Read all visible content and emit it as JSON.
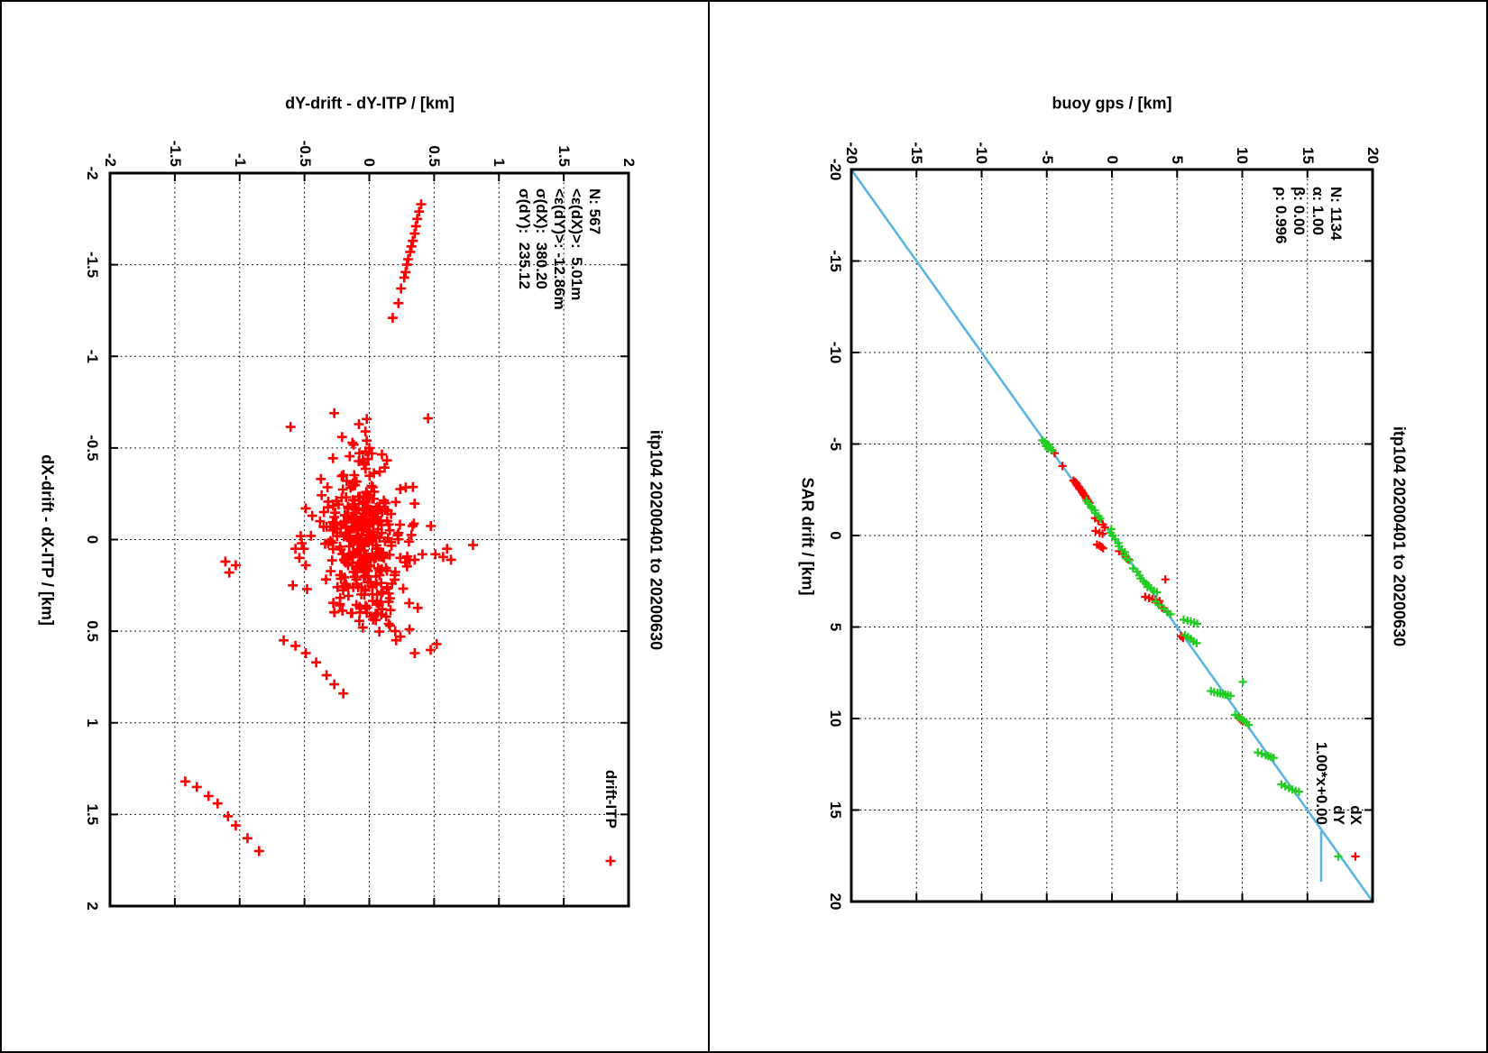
{
  "page": {
    "background": "#ffffff",
    "frame_color": "#000000",
    "grid_color": "#000000"
  },
  "chart_data": [
    {
      "id": "left",
      "type": "scatter",
      "title": "itp104 20200401 to 20200630",
      "xlabel": "dX-drift - dX-ITP / [km]",
      "ylabel": "dY-drift - dY-ITP / [km]",
      "xlim": [
        -2,
        2
      ],
      "ylim": [
        -2,
        2
      ],
      "xtick_values": [
        -2,
        -1.5,
        -1,
        -0.5,
        0,
        0.5,
        1,
        1.5,
        2
      ],
      "xtick_labels": [
        "-2",
        "-1.5",
        "-1",
        "-0.5",
        "0",
        "0.5",
        "1",
        "1.5",
        "2"
      ],
      "ytick_values": [
        -2,
        -1.5,
        -1,
        -0.5,
        0,
        0.5,
        1,
        1.5,
        2
      ],
      "ytick_labels": [
        "-2",
        "-1.5",
        "-1",
        "-0.5",
        "0",
        "0.5",
        "1",
        "1.5",
        "2"
      ],
      "grid": true,
      "stats_lines": [
        "N: 567",
        "<ε(dX)>:  5.01m",
        "<ε(dY)>: -12.86m",
        "σ(dX):  380.20",
        "σ(dY):  235.12"
      ],
      "legend": [
        {
          "label": "drift-ITP",
          "sample": "plus",
          "color": "#ff0000"
        }
      ],
      "series": [
        {
          "name": "drift-ITP",
          "marker": "plus",
          "color": "#ff0000",
          "points": [
            [
              -1.83,
              0.4
            ],
            [
              -1.79,
              0.385
            ],
            [
              -1.75,
              0.37
            ],
            [
              -1.71,
              0.36
            ],
            [
              -1.67,
              0.35
            ],
            [
              -1.63,
              0.335
            ],
            [
              -1.6,
              0.325
            ],
            [
              -1.57,
              0.315
            ],
            [
              -1.53,
              0.3
            ],
            [
              -1.5,
              0.29
            ],
            [
              -1.46,
              0.28
            ],
            [
              -1.43,
              0.27
            ],
            [
              -1.37,
              0.245
            ],
            [
              -1.29,
              0.225
            ],
            [
              -1.21,
              0.18
            ],
            [
              0.25,
              -0.59
            ],
            [
              0.27,
              -0.48
            ],
            [
              0.55,
              -0.66
            ],
            [
              0.58,
              -0.57
            ],
            [
              0.62,
              -0.49
            ],
            [
              0.67,
              -0.41
            ],
            [
              0.74,
              -0.33
            ],
            [
              0.79,
              -0.27
            ],
            [
              0.84,
              -0.2
            ],
            [
              1.32,
              -1.42
            ],
            [
              1.35,
              -1.33
            ],
            [
              1.4,
              -1.24
            ],
            [
              1.44,
              -1.17
            ],
            [
              1.51,
              -1.09
            ],
            [
              1.56,
              -1.03
            ],
            [
              1.63,
              -0.94
            ],
            [
              1.7,
              -0.85
            ],
            [
              0.03,
              0.8
            ],
            [
              0.05,
              0.6
            ],
            [
              0.11,
              0.63
            ],
            [
              0.095,
              0.57
            ],
            [
              0.08,
              0.51
            ],
            [
              0.11,
              0.35
            ],
            [
              0.08,
              0.41
            ],
            [
              0.57,
              0.52
            ],
            [
              0.62,
              0.35
            ],
            [
              0.12,
              -1.11
            ],
            [
              0.14,
              -1.03
            ],
            [
              0.18,
              -1.08
            ],
            [
              -0.69,
              -0.27
            ],
            [
              -0.56,
              -0.21
            ],
            [
              0.1,
              -0.54
            ],
            [
              0.14,
              -0.49
            ],
            [
              0.3,
              0.06
            ],
            [
              0.34,
              0.09
            ],
            [
              0.38,
              0.1
            ],
            [
              0.42,
              0.13
            ],
            [
              0.46,
              0.15
            ],
            [
              0.5,
              0.2
            ],
            [
              0.53,
              0.24
            ],
            [
              0.44,
              0.05
            ],
            [
              0.4,
              -0.02
            ],
            [
              0.48,
              -0.05
            ],
            [
              0.47,
              0.16
            ],
            [
              0.49,
              0.31
            ],
            [
              -0.59,
              -0.03
            ],
            [
              -0.54,
              -0.02
            ],
            [
              -0.5,
              0.0
            ],
            [
              -0.47,
              0.02
            ],
            [
              -0.44,
              -0.01
            ],
            [
              -0.41,
              -0.04
            ],
            [
              -0.63,
              -0.08
            ],
            [
              -0.17,
              -0.49
            ],
            [
              -0.13,
              -0.44
            ],
            [
              -0.1,
              -0.38
            ],
            [
              -0.07,
              -0.33
            ],
            [
              -0.05,
              -0.28
            ],
            [
              -0.15,
              -0.35
            ],
            [
              -0.02,
              -0.45
            ],
            [
              0.02,
              -0.52
            ],
            [
              0.05,
              -0.57
            ]
          ],
          "cluster_approx": {
            "note": "dense core of the 567-sample residual cloud",
            "seed": 20200401,
            "count": 300,
            "center": [
              0.01,
              -0.04
            ],
            "sigma": [
              0.19,
              0.14
            ],
            "halo_count": 60,
            "halo_sigma": [
              0.33,
              0.24
            ],
            "clip_x": [
              -0.75,
              0.75
            ],
            "clip_y": [
              -0.65,
              0.5
            ]
          }
        }
      ]
    },
    {
      "id": "right",
      "type": "scatter",
      "title": "itp104 20200401 to 20200630",
      "xlabel": "SAR drift / [km]",
      "ylabel": "buoy gps / [km]",
      "xlim": [
        -20,
        20
      ],
      "ylim": [
        -20,
        20
      ],
      "xtick_values": [
        -20,
        -15,
        -10,
        -5,
        0,
        5,
        10,
        15,
        20
      ],
      "xtick_labels": [
        "-20",
        "-15",
        "-10",
        "-5",
        "0",
        "5",
        "10",
        "15",
        "20"
      ],
      "ytick_values": [
        -20,
        -15,
        -10,
        -5,
        0,
        5,
        10,
        15,
        20
      ],
      "ytick_labels": [
        "-20",
        "-15",
        "-10",
        "-5",
        "0",
        "5",
        "10",
        "15",
        "20"
      ],
      "grid": true,
      "stats_lines": [
        "N: 1134",
        "α: 1.00",
        "β: 0.00",
        "ρ: 0.996"
      ],
      "legend": [
        {
          "label": "dX",
          "sample": "plus",
          "color": "#ff0000"
        },
        {
          "label": "dY",
          "sample": "plus",
          "color": "#22cc22"
        },
        {
          "label": "1.00*x+0.00",
          "sample": "line",
          "color": "#5ab4e4"
        }
      ],
      "fit_line": {
        "label": "1.00*x+0.00",
        "slope": 1.0,
        "intercept": 0.0,
        "color": "#5ab4e4"
      },
      "series": [
        {
          "name": "dX",
          "marker": "plus",
          "color": "#ff0000",
          "points": [
            [
              -4.5,
              -4.4
            ],
            [
              -3.8,
              -3.8
            ],
            [
              -3.0,
              -2.95
            ],
            [
              -2.92,
              -2.8
            ],
            [
              -2.85,
              -2.75
            ],
            [
              -2.78,
              -2.7
            ],
            [
              -2.7,
              -2.62
            ],
            [
              -2.64,
              -2.52
            ],
            [
              -2.56,
              -2.5
            ],
            [
              -2.5,
              -2.4
            ],
            [
              -2.44,
              -2.32
            ],
            [
              -2.36,
              -2.28
            ],
            [
              -2.3,
              -2.2
            ],
            [
              -2.22,
              -2.15
            ],
            [
              -2.15,
              -2.05
            ],
            [
              -2.05,
              -2.0
            ],
            [
              -1.95,
              -1.88
            ],
            [
              -1.85,
              -1.82
            ],
            [
              -1.78,
              -1.72
            ],
            [
              -0.95,
              -1.3
            ],
            [
              -0.82,
              -1.05
            ],
            [
              -0.6,
              -0.7
            ],
            [
              -0.45,
              -0.55
            ],
            [
              -0.25,
              -1.25
            ],
            [
              -0.15,
              -0.95
            ],
            [
              -0.1,
              -0.72
            ],
            [
              0.5,
              -1.15
            ],
            [
              0.55,
              -0.95
            ],
            [
              0.62,
              -0.8
            ],
            [
              0.7,
              -0.68
            ],
            [
              0.85,
              0.55
            ],
            [
              1.0,
              0.85
            ],
            [
              1.15,
              1.05
            ],
            [
              1.3,
              1.25
            ],
            [
              2.4,
              4.1
            ],
            [
              3.35,
              2.55
            ],
            [
              3.42,
              2.85
            ],
            [
              3.48,
              3.1
            ],
            [
              3.52,
              3.35
            ],
            [
              3.58,
              3.65
            ],
            [
              3.7,
              3.55
            ],
            [
              3.95,
              3.85
            ],
            [
              4.15,
              4.25
            ],
            [
              5.5,
              5.3
            ],
            [
              5.6,
              5.45
            ],
            [
              10.0,
              9.8
            ],
            [
              10.08,
              9.92
            ],
            [
              10.15,
              10.05
            ]
          ]
        },
        {
          "name": "dY",
          "marker": "plus",
          "color": "#22cc22",
          "points": [
            [
              -5.2,
              -5.35
            ],
            [
              -5.1,
              -5.15
            ],
            [
              -5.0,
              -5.0
            ],
            [
              -4.95,
              -4.85
            ],
            [
              -4.88,
              -5.05
            ],
            [
              -4.82,
              -4.75
            ],
            [
              -4.75,
              -4.9
            ],
            [
              -4.65,
              -4.55
            ],
            [
              -1.9,
              -1.95
            ],
            [
              -1.75,
              -1.8
            ],
            [
              -1.6,
              -1.62
            ],
            [
              -1.5,
              -1.55
            ],
            [
              -1.38,
              -1.32
            ],
            [
              -1.22,
              -1.28
            ],
            [
              -1.05,
              -1.02
            ],
            [
              -0.92,
              -0.9
            ],
            [
              -0.35,
              -0.05
            ],
            [
              -0.15,
              -0.1
            ],
            [
              0.0,
              0.05
            ],
            [
              0.2,
              0.25
            ],
            [
              0.42,
              0.5
            ],
            [
              0.58,
              0.55
            ],
            [
              0.78,
              0.75
            ],
            [
              0.9,
              1.0
            ],
            [
              1.08,
              1.02
            ],
            [
              1.25,
              1.1
            ],
            [
              1.35,
              1.35
            ],
            [
              1.8,
              1.62
            ],
            [
              1.98,
              1.95
            ],
            [
              2.18,
              2.12
            ],
            [
              2.35,
              2.2
            ],
            [
              2.5,
              2.42
            ],
            [
              2.62,
              2.6
            ],
            [
              2.72,
              2.78
            ],
            [
              2.82,
              2.72
            ],
            [
              2.9,
              3.0
            ],
            [
              3.02,
              3.2
            ],
            [
              3.1,
              3.45
            ],
            [
              3.6,
              3.35
            ],
            [
              3.8,
              3.62
            ],
            [
              4.0,
              4.0
            ],
            [
              4.18,
              4.22
            ],
            [
              4.3,
              4.5
            ],
            [
              4.6,
              5.5
            ],
            [
              4.66,
              5.8
            ],
            [
              4.7,
              6.05
            ],
            [
              4.76,
              6.3
            ],
            [
              4.82,
              6.55
            ],
            [
              5.45,
              5.6
            ],
            [
              5.55,
              5.85
            ],
            [
              5.65,
              6.05
            ],
            [
              5.78,
              6.25
            ],
            [
              5.88,
              6.5
            ],
            [
              8.0,
              10.05
            ],
            [
              8.5,
              7.6
            ],
            [
              8.55,
              7.85
            ],
            [
              8.6,
              8.1
            ],
            [
              8.62,
              8.3
            ],
            [
              8.66,
              8.5
            ],
            [
              8.7,
              8.7
            ],
            [
              8.72,
              8.9
            ],
            [
              8.76,
              9.1
            ],
            [
              9.8,
              9.45
            ],
            [
              9.9,
              9.7
            ],
            [
              10.0,
              9.9
            ],
            [
              10.1,
              10.1
            ],
            [
              10.2,
              10.3
            ],
            [
              10.35,
              10.5
            ],
            [
              11.85,
              11.2
            ],
            [
              11.92,
              11.5
            ],
            [
              12.0,
              11.8
            ],
            [
              12.05,
              12.0
            ],
            [
              12.1,
              12.2
            ],
            [
              12.15,
              12.4
            ],
            [
              13.6,
              13.0
            ],
            [
              13.7,
              13.3
            ],
            [
              13.8,
              13.6
            ],
            [
              13.88,
              13.85
            ],
            [
              13.95,
              14.1
            ],
            [
              14.0,
              14.35
            ]
          ]
        }
      ]
    }
  ]
}
